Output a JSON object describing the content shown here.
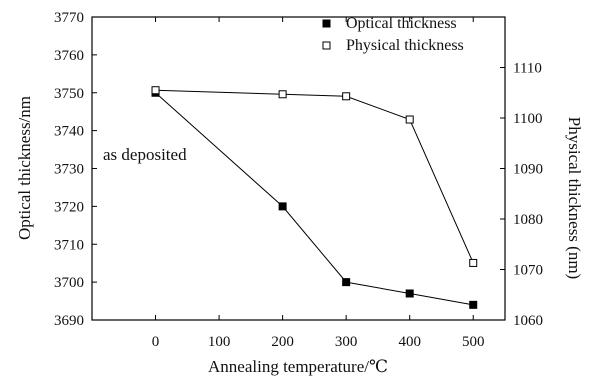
{
  "chart_data": {
    "type": "line",
    "title": "",
    "xlabel": "Annealing temperature/℃",
    "ylabel": "Optical thickness/nm",
    "y2label": "Physical thickness (nm)",
    "xlim": [
      -100,
      550
    ],
    "ylim": [
      3690,
      3770
    ],
    "y2lim": [
      1060,
      1120
    ],
    "x_ticks": [
      "0",
      "100",
      "200",
      "300",
      "400",
      "500"
    ],
    "y_ticks": [
      "3690",
      "3700",
      "3710",
      "3720",
      "3730",
      "3740",
      "3750",
      "3760",
      "3770"
    ],
    "y2_ticks": [
      "1060",
      "1070",
      "1080",
      "1090",
      "1100",
      "1110"
    ],
    "grid": false,
    "legend_position": "top-right",
    "annotation": "as deposited",
    "series": [
      {
        "name": "Optical thickness",
        "axis": "left",
        "marker": "filled-square",
        "color": "#000000",
        "x": [
          0,
          200,
          300,
          400,
          500
        ],
        "y": [
          3750,
          3720,
          3700,
          3697,
          3694
        ]
      },
      {
        "name": "Physical thickness",
        "axis": "right",
        "marker": "open-square",
        "color": "#000000",
        "x": [
          0,
          200,
          300,
          400,
          500
        ],
        "y": [
          1105.5,
          1104.7,
          1104.3,
          1099.7,
          1071.3
        ]
      }
    ]
  }
}
